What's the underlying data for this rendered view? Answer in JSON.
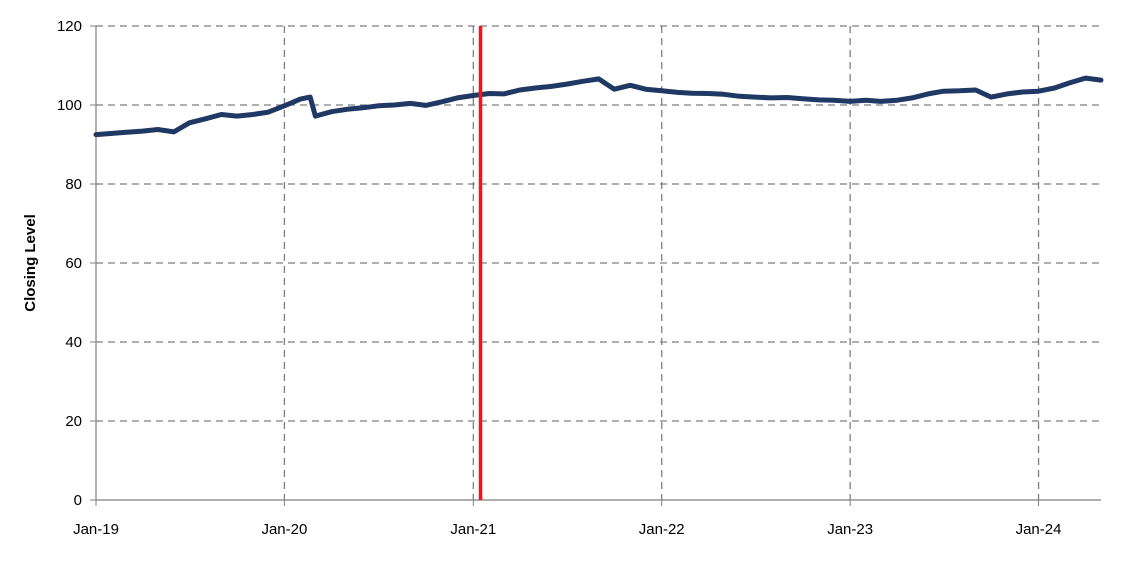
{
  "chart_data": {
    "type": "line",
    "title": "",
    "xlabel": "",
    "ylabel": "Closing Level",
    "ylim": [
      0,
      120
    ],
    "y_ticks": [
      0,
      20,
      40,
      60,
      80,
      100,
      120
    ],
    "x_range": [
      "2019-01",
      "2024-05"
    ],
    "x_ticks": [
      {
        "date": "2019-01",
        "label": "Jan-19"
      },
      {
        "date": "2020-01",
        "label": "Jan-20"
      },
      {
        "date": "2021-01",
        "label": "Jan-21"
      },
      {
        "date": "2022-01",
        "label": "Jan-22"
      },
      {
        "date": "2023-01",
        "label": "Jan-23"
      },
      {
        "date": "2024-01",
        "label": "Jan-24"
      }
    ],
    "grid": true,
    "legend": "none",
    "reference_line": {
      "date": "2021-01-15",
      "color": "#E8191E"
    },
    "series": [
      {
        "color": "#1F3864",
        "points": [
          [
            "2019-01",
            92.5
          ],
          [
            "2019-02",
            92.8
          ],
          [
            "2019-03",
            93.1
          ],
          [
            "2019-04",
            93.4
          ],
          [
            "2019-05",
            93.8
          ],
          [
            "2019-06",
            93.2
          ],
          [
            "2019-07",
            95.5
          ],
          [
            "2019-08",
            96.5
          ],
          [
            "2019-09",
            97.6
          ],
          [
            "2019-10",
            97.2
          ],
          [
            "2019-11",
            97.6
          ],
          [
            "2019-12",
            98.2
          ],
          [
            "2020-01",
            99.8
          ],
          [
            "2020-02",
            101.5
          ],
          [
            "2020-02-20",
            102.0
          ],
          [
            "2020-03",
            97.2
          ],
          [
            "2020-04",
            98.3
          ],
          [
            "2020-05",
            98.9
          ],
          [
            "2020-06",
            99.3
          ],
          [
            "2020-07",
            99.8
          ],
          [
            "2020-08",
            100.0
          ],
          [
            "2020-09",
            100.4
          ],
          [
            "2020-10",
            99.9
          ],
          [
            "2020-11",
            100.8
          ],
          [
            "2020-12",
            101.8
          ],
          [
            "2021-01",
            102.4
          ],
          [
            "2021-02",
            102.9
          ],
          [
            "2021-03",
            102.8
          ],
          [
            "2021-04",
            103.8
          ],
          [
            "2021-05",
            104.3
          ],
          [
            "2021-06",
            104.7
          ],
          [
            "2021-07",
            105.3
          ],
          [
            "2021-08",
            106.0
          ],
          [
            "2021-09",
            106.6
          ],
          [
            "2021-10",
            104.0
          ],
          [
            "2021-11",
            105.0
          ],
          [
            "2021-12",
            104.0
          ],
          [
            "2022-01",
            103.6
          ],
          [
            "2022-02",
            103.2
          ],
          [
            "2022-03",
            103.0
          ],
          [
            "2022-04",
            102.9
          ],
          [
            "2022-05",
            102.7
          ],
          [
            "2022-06",
            102.2
          ],
          [
            "2022-07",
            102.0
          ],
          [
            "2022-08",
            101.8
          ],
          [
            "2022-09",
            101.9
          ],
          [
            "2022-10",
            101.6
          ],
          [
            "2022-11",
            101.3
          ],
          [
            "2022-12",
            101.2
          ],
          [
            "2023-01",
            100.9
          ],
          [
            "2023-02",
            101.2
          ],
          [
            "2023-03",
            100.9
          ],
          [
            "2023-04",
            101.2
          ],
          [
            "2023-05",
            101.8
          ],
          [
            "2023-06",
            102.8
          ],
          [
            "2023-07",
            103.5
          ],
          [
            "2023-08",
            103.6
          ],
          [
            "2023-09",
            103.8
          ],
          [
            "2023-10",
            102.0
          ],
          [
            "2023-11",
            102.8
          ],
          [
            "2023-12",
            103.3
          ],
          [
            "2024-01",
            103.5
          ],
          [
            "2024-02",
            104.3
          ],
          [
            "2024-03",
            105.6
          ],
          [
            "2024-04",
            106.8
          ],
          [
            "2024-05",
            106.3
          ]
        ]
      }
    ]
  }
}
